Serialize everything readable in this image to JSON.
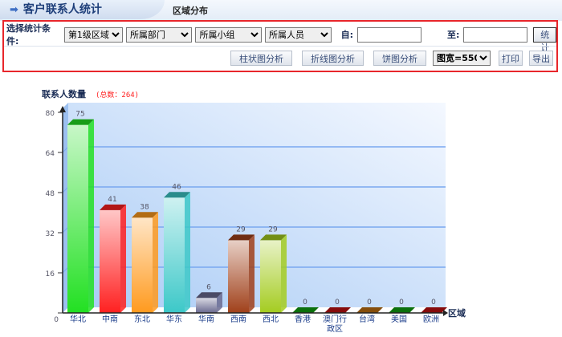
{
  "header": {
    "title": "客户联系人统计",
    "tab": "区域分布"
  },
  "filters": {
    "label": "选择统计条件:",
    "level": "第1级区域",
    "department": "所属部门",
    "group": "所属小组",
    "person": "所属人员",
    "from_label": "自:",
    "from_value": "",
    "to_label": "至:",
    "to_value": "",
    "stat_button": "统计"
  },
  "actions": {
    "bar": "柱状图分析",
    "line": "折线图分析",
    "pie": "饼图分析",
    "width_select": "图宽=550",
    "print": "打印",
    "export": "导出"
  },
  "chart_data": {
    "type": "bar",
    "title": "联系人数量",
    "total_label": "(总数：264)",
    "xlabel": "区域",
    "ylim": [
      0,
      80
    ],
    "yticks": [
      0,
      16,
      32,
      48,
      64,
      80
    ],
    "categories": [
      "华北",
      "中南",
      "东北",
      "华东",
      "华南",
      "西南",
      "西北",
      "香港",
      "澳门行政区",
      "台湾",
      "美国",
      "欧洲"
    ],
    "values": [
      75,
      41,
      38,
      46,
      6,
      29,
      29,
      0,
      0,
      0,
      0,
      0
    ],
    "colors": [
      "#22e022",
      "#ff2020",
      "#ff9a1e",
      "#3cc8c8",
      "#6a6a90",
      "#a0401a",
      "#a4cc20",
      "#10a010",
      "#c01010",
      "#c07010",
      "#10a010",
      "#c01010"
    ],
    "grid": true
  }
}
